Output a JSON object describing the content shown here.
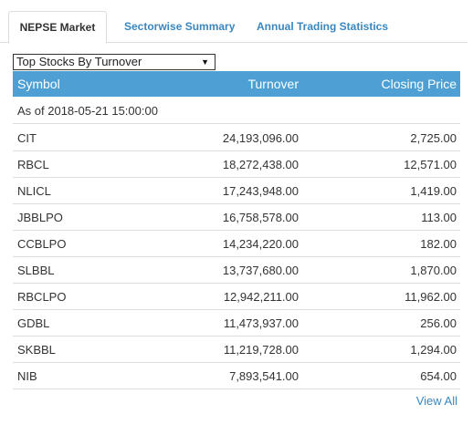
{
  "tabs": [
    "NEPSE Market",
    "Sectorwise Summary",
    "Annual Trading Statistics"
  ],
  "dropdown": {
    "selected": "Top Stocks By Turnover"
  },
  "table": {
    "headers": [
      "Symbol",
      "Turnover",
      "Closing Price"
    ],
    "as_of": "As of 2018-05-21 15:00:00",
    "rows": [
      [
        "CIT",
        "24,193,096.00",
        "2,725.00"
      ],
      [
        "RBCL",
        "18,272,438.00",
        "12,571.00"
      ],
      [
        "NLICL",
        "17,243,948.00",
        "1,419.00"
      ],
      [
        "JBBLPO",
        "16,758,578.00",
        "113.00"
      ],
      [
        "CCBLPO",
        "14,234,220.00",
        "182.00"
      ],
      [
        "SLBBL",
        "13,737,680.00",
        "1,870.00"
      ],
      [
        "RBCLPO",
        "12,942,211.00",
        "11,962.00"
      ],
      [
        "GDBL",
        "11,473,937.00",
        "256.00"
      ],
      [
        "SKBBL",
        "11,219,728.00",
        "1,294.00"
      ],
      [
        "NIB",
        "7,893,541.00",
        "654.00"
      ]
    ]
  },
  "view_all": "View All",
  "colors": {
    "header_bg": "#4e9fd3",
    "link": "#3a87c0"
  }
}
